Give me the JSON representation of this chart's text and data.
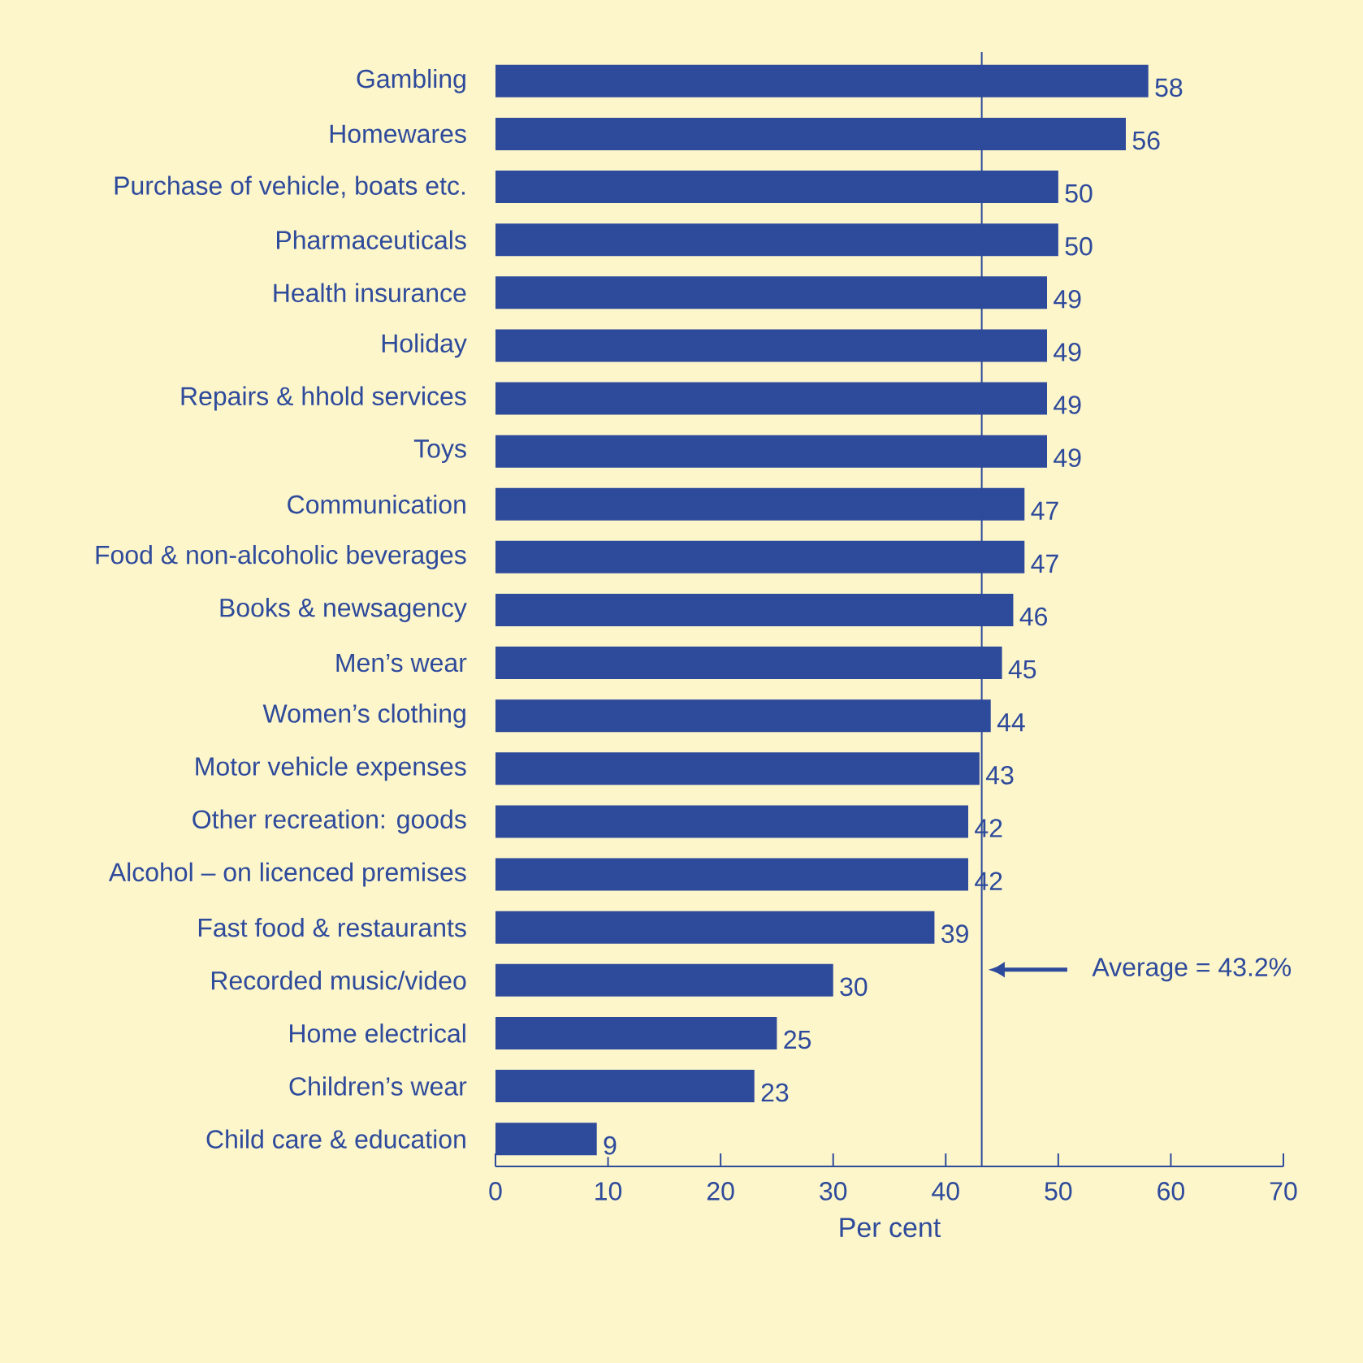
{
  "chart_data": {
    "type": "bar",
    "orientation": "horizontal",
    "xlabel": "Per cent",
    "categories": [
      "Gambling",
      "Homewares",
      "Purchase of vehicle, boats etc.",
      "Pharmaceuticals",
      "Health insurance",
      "Holiday",
      "Repairs & hhold services",
      "Toys",
      "Communication",
      "Food & non-alcoholic beverages",
      "Books & newsagency",
      "Men’s wear",
      "Women’s clothing",
      "Motor vehicle expenses",
      "Other recreation: goods",
      "Alcohol – on licenced premises",
      "Fast food & restaurants",
      "Recorded music/video",
      "Home electrical",
      "Children’s wear",
      "Child care & education"
    ],
    "values": [
      58,
      56,
      50,
      50,
      49,
      49,
      49,
      49,
      47,
      47,
      46,
      45,
      44,
      43,
      42,
      42,
      39,
      30,
      25,
      23,
      9
    ],
    "color": "#2e4a9b",
    "data_labels": true,
    "xlim": [
      0,
      70
    ],
    "xticks": [
      0,
      10,
      20,
      30,
      40,
      50,
      60,
      70
    ],
    "ref_lines": [
      {
        "axis": "x",
        "value": 43.2,
        "label": "Average = 43.2%",
        "color": "#2e4a9b"
      }
    ],
    "grid": false
  }
}
